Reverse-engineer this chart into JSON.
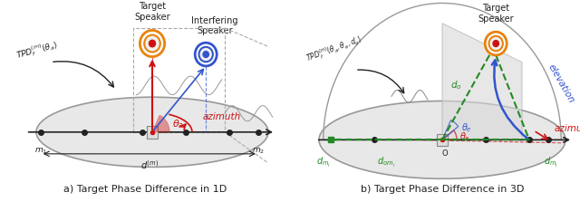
{
  "fig_width": 6.4,
  "fig_height": 2.23,
  "bg_color": "#ffffff",
  "title_a": "a) Target Phase Difference in 1D",
  "title_b": "b) Target Phase Difference in 3D",
  "label_target_speaker": "Target\nSpeaker",
  "label_interfering_speaker": "Interfering\nSpeaker",
  "label_azimuth": "azimuth",
  "label_elevation": "elevation",
  "label_tpd_1d": "TPD$_f^{(m)}(\\theta_a)$",
  "label_tpd_3d": "TPD$_f^{(m)}(\\theta_a, \\theta_e, d_o)$",
  "label_theta_a": "$\\theta_a$",
  "label_theta_e": "$\\theta_e$",
  "label_do": "$d_o$",
  "label_dom": "$d_{om_i}$",
  "label_dm1": "$d_{m_i}$",
  "label_dm2": "$d_{m_i}$",
  "label_d_m": "$d^{(m)}$",
  "label_m1": "$m_1$",
  "label_m2": "$m_2$",
  "label_O": "O",
  "orange_color": "#E8820C",
  "blue_color": "#3355CC",
  "red_color": "#CC1111",
  "green_color": "#228B22",
  "gray_color": "#888888",
  "dark_color": "#222222"
}
